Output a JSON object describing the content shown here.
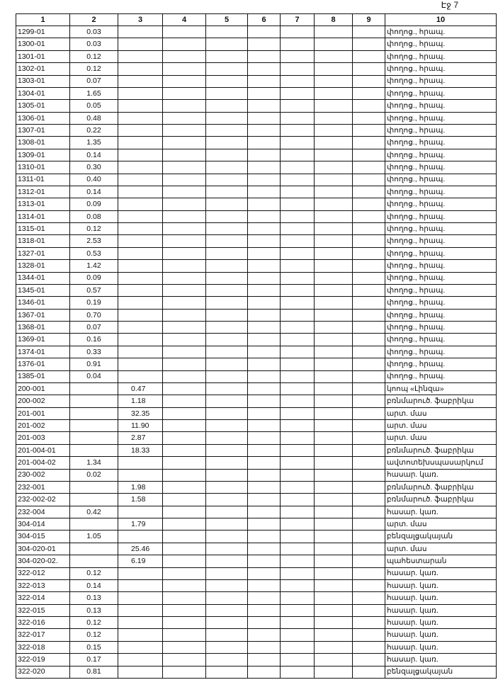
{
  "page": "Էջ 7",
  "header": [
    "1",
    "2",
    "3",
    "4",
    "5",
    "6",
    "7",
    "8",
    "9",
    "10"
  ],
  "rows": [
    {
      "1": "1299-01",
      "2": "0.03",
      "10": "փողոց., հրապ."
    },
    {
      "1": "1300-01",
      "2": "0.03",
      "10": "փողոց., հրապ."
    },
    {
      "1": "1301-01",
      "2": "0.12",
      "10": "փողոց., հրապ."
    },
    {
      "1": "1302-01",
      "2": "0.12",
      "10": "փողոց., հրապ."
    },
    {
      "1": "1303-01",
      "2": "0.07",
      "10": "փողոց., հրապ."
    },
    {
      "1": "1304-01",
      "2": "1.65",
      "10": "փողոց., հրապ."
    },
    {
      "1": "1305-01",
      "2": "0.05",
      "10": "փողոց., հրապ."
    },
    {
      "1": "1306-01",
      "2": "0.48",
      "10": "փողոց., հրապ."
    },
    {
      "1": "1307-01",
      "2": "0.22",
      "10": "փողոց., հրապ."
    },
    {
      "1": "1308-01",
      "2": "1.35",
      "10": "փողոց., հրապ."
    },
    {
      "1": "1309-01",
      "2": "0.14",
      "10": "փողոց., հրապ."
    },
    {
      "1": "1310-01",
      "2": "0.30",
      "10": "փողոց., հրապ."
    },
    {
      "1": "1311-01",
      "2": "0.40",
      "10": "փողոց., հրապ."
    },
    {
      "1": "1312-01",
      "2": "0.14",
      "10": "փողոց., հրապ."
    },
    {
      "1": "1313-01",
      "2": "0.09",
      "10": "փողոց., հրապ."
    },
    {
      "1": "1314-01",
      "2": "0.08",
      "10": "փողոց., հրապ."
    },
    {
      "1": "1315-01",
      "2": "0.12",
      "10": "փողոց., հրապ."
    },
    {
      "1": "1318-01",
      "2": "2.53",
      "10": "փողոց., հրապ."
    },
    {
      "1": "1327-01",
      "2": "0.53",
      "10": "փողոց., հրապ."
    },
    {
      "1": "1328-01",
      "2": "1.42",
      "10": "փողոց., հրապ."
    },
    {
      "1": "1344-01",
      "2": "0.09",
      "10": "փողոց., հրապ."
    },
    {
      "1": "1345-01",
      "2": "0.57",
      "10": "փողոց., հրապ."
    },
    {
      "1": "1346-01",
      "2": "0.19",
      "10": "փողոց., հրապ."
    },
    {
      "1": "1367-01",
      "2": "0.70",
      "10": "փողոց., հրապ."
    },
    {
      "1": "1368-01",
      "2": "0.07",
      "10": "փողոց., հրապ."
    },
    {
      "1": "1369-01",
      "2": "0.16",
      "10": "փողոց., հրապ."
    },
    {
      "1": "1374-01",
      "2": "0.33",
      "10": "փողոց., հրապ."
    },
    {
      "1": "1376-01",
      "2": "0.91",
      "10": "փողոց., հրապ."
    },
    {
      "1": "1385-01",
      "2": "0.04",
      "10": "փողոց., հրապ."
    },
    {
      "1": "200-001",
      "3": "0.47",
      "10": "կոոպ «Լինզա»"
    },
    {
      "1": "200-002",
      "3": "1.18",
      "10": "բռնմարուծ. ֆաբրիկա"
    },
    {
      "1": "201-001",
      "3": "32.35",
      "10": "արտ. մաս"
    },
    {
      "1": "201-002",
      "3": "11.90",
      "10": "արտ. մաս"
    },
    {
      "1": "201-003",
      "3": "2.87",
      "10": "արտ. մաս"
    },
    {
      "1": "201-004-01",
      "3": "18.33",
      "10": "բռնմարուծ. ֆաբրիկա"
    },
    {
      "1": "201-004-02",
      "2": "1.34",
      "10": "ավտոտեխսպասարկում"
    },
    {
      "1": "230-002",
      "2": "0.02",
      "10": "հասար. կառ."
    },
    {
      "1": "232-001",
      "3": "1.98",
      "10": "բռնմարուծ. ֆաբրիկա"
    },
    {
      "1": "232-002-02",
      "3": "1.58",
      "10": "բռնմարուծ. ֆաբրիկա"
    },
    {
      "1": "232-004",
      "2": "0.42",
      "10": "հասար. կառ."
    },
    {
      "1": "304-014",
      "3": "1.79",
      "10": "արտ. մաս"
    },
    {
      "1": "304-015",
      "2": "1.05",
      "10": "բենզալցակայան"
    },
    {
      "1": "304-020-01",
      "3": "25.46",
      "10": "արտ. մաս"
    },
    {
      "1": "304-020-02.",
      "3": "6.19",
      "10": "պահեստարան"
    },
    {
      "1": "322-012",
      "2": "0.12",
      "10": "հասար. կառ."
    },
    {
      "1": "322-013",
      "2": "0.14",
      "10": "հասար. կառ."
    },
    {
      "1": "322-014",
      "2": "0.13",
      "10": "հասար. կառ."
    },
    {
      "1": "322-015",
      "2": "0.13",
      "10": "հասար. կառ."
    },
    {
      "1": "322-016",
      "2": "0.12",
      "10": "հասար. կառ."
    },
    {
      "1": "322-017",
      "2": "0.12",
      "10": "հասար. կառ."
    },
    {
      "1": "322-018",
      "2": "0.15",
      "10": "հասար. կառ."
    },
    {
      "1": "322-019",
      "2": "0.17",
      "10": "հասար. կառ."
    },
    {
      "1": "322-020",
      "2": "0.81",
      "10": "բենզալցակայան"
    }
  ]
}
